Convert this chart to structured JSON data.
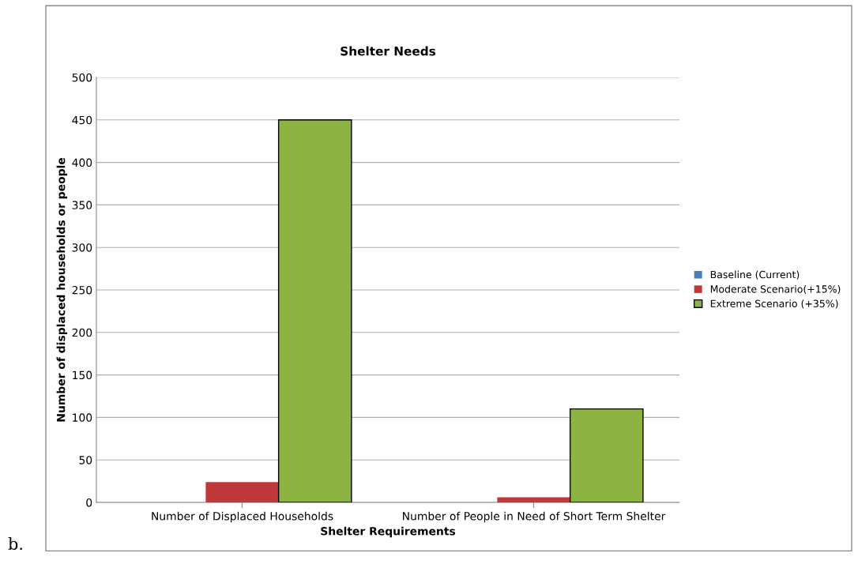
{
  "chart_data": {
    "type": "bar",
    "title": "Shelter Needs",
    "xlabel": "Shelter Requirements",
    "ylabel": "Number of displaced households or people",
    "categories": [
      "Number of Displaced Households",
      "Number of People in Need of Short Term Shelter"
    ],
    "series": [
      {
        "name": "Baseline (Current)",
        "color": "#4a7ebb",
        "values": [
          0,
          0
        ]
      },
      {
        "name": "Moderate Scenario(+15%)",
        "color": "#c0393a",
        "values": [
          24,
          6
        ]
      },
      {
        "name": "Extreme Scenario (+35%)",
        "color": "#8db443",
        "values": [
          450,
          110
        ]
      }
    ],
    "ylim": [
      0,
      500
    ],
    "yticks": [
      0,
      50,
      100,
      150,
      200,
      250,
      300,
      350,
      400,
      450,
      500
    ],
    "grid": "y",
    "legend": "right",
    "annotations": [
      "b."
    ]
  }
}
